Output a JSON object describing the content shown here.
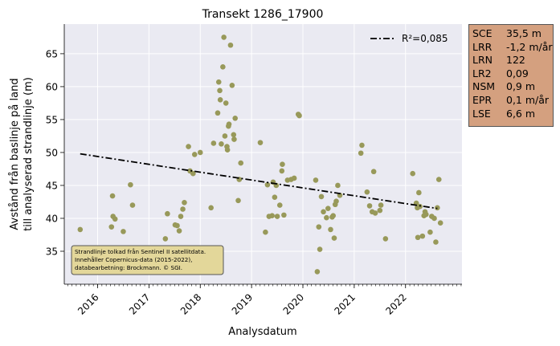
{
  "chart_data": {
    "type": "scatter",
    "title": "Transekt 1286_17900",
    "xlabel": "Analysdatum",
    "ylabel_line1": "Avstånd från baslinje på land",
    "ylabel_line2": "till analyserad strandlinje (m)",
    "xlim": [
      2015.35,
      2023.1
    ],
    "ylim": [
      30.0,
      69.5
    ],
    "x_ticks": [
      2016,
      2017,
      2018,
      2019,
      2020,
      2021,
      2022
    ],
    "x_tick_labels": [
      "2016",
      "2017",
      "2018",
      "2019",
      "2020",
      "2021",
      "2022"
    ],
    "y_ticks": [
      35,
      40,
      45,
      50,
      55,
      60,
      65
    ],
    "y_tick_labels": [
      "35",
      "40",
      "45",
      "50",
      "55",
      "60",
      "65"
    ],
    "grid": true,
    "legend_position": "top-right",
    "series": [
      {
        "name": "observations",
        "kind": "scatter",
        "color": "#98995a",
        "points": [
          [
            2015.66,
            38.3
          ],
          [
            2016.27,
            38.7
          ],
          [
            2016.29,
            43.4
          ],
          [
            2016.3,
            40.3
          ],
          [
            2016.34,
            39.9
          ],
          [
            2016.5,
            38.0
          ],
          [
            2016.64,
            45.1
          ],
          [
            2016.68,
            42.0
          ],
          [
            2017.32,
            36.9
          ],
          [
            2017.36,
            40.7
          ],
          [
            2017.51,
            39.0
          ],
          [
            2017.55,
            38.9
          ],
          [
            2017.59,
            38.1
          ],
          [
            2017.62,
            40.3
          ],
          [
            2017.66,
            41.4
          ],
          [
            2017.69,
            42.4
          ],
          [
            2017.77,
            50.9
          ],
          [
            2017.8,
            47.2
          ],
          [
            2017.86,
            46.8
          ],
          [
            2017.89,
            49.7
          ],
          [
            2018.0,
            50.0
          ],
          [
            2018.21,
            41.6
          ],
          [
            2018.26,
            51.4
          ],
          [
            2018.34,
            56.0
          ],
          [
            2018.36,
            60.7
          ],
          [
            2018.38,
            59.4
          ],
          [
            2018.39,
            58.0
          ],
          [
            2018.41,
            51.3
          ],
          [
            2018.44,
            63.0
          ],
          [
            2018.46,
            67.5
          ],
          [
            2018.48,
            52.5
          ],
          [
            2018.5,
            57.5
          ],
          [
            2018.52,
            50.9
          ],
          [
            2018.53,
            50.4
          ],
          [
            2018.55,
            54.0
          ],
          [
            2018.56,
            54.3
          ],
          [
            2018.59,
            66.3
          ],
          [
            2018.62,
            60.2
          ],
          [
            2018.65,
            52.7
          ],
          [
            2018.68,
            55.2
          ],
          [
            2018.74,
            42.7
          ],
          [
            2018.76,
            45.9
          ],
          [
            2018.79,
            48.4
          ],
          [
            2018.66,
            52.0
          ],
          [
            2019.17,
            51.5
          ],
          [
            2019.27,
            37.9
          ],
          [
            2019.31,
            45.1
          ],
          [
            2019.34,
            40.3
          ],
          [
            2019.4,
            40.4
          ],
          [
            2019.42,
            45.5
          ],
          [
            2019.45,
            43.2
          ],
          [
            2019.48,
            45.0
          ],
          [
            2019.5,
            40.3
          ],
          [
            2019.55,
            42.0
          ],
          [
            2019.59,
            47.2
          ],
          [
            2019.6,
            48.2
          ],
          [
            2019.63,
            40.5
          ],
          [
            2019.7,
            45.8
          ],
          [
            2019.77,
            45.9
          ],
          [
            2019.83,
            46.1
          ],
          [
            2019.91,
            55.8
          ],
          [
            2019.93,
            55.6
          ],
          [
            2020.25,
            45.8
          ],
          [
            2020.28,
            31.9
          ],
          [
            2020.31,
            38.7
          ],
          [
            2020.33,
            35.3
          ],
          [
            2020.36,
            43.3
          ],
          [
            2020.4,
            41.0
          ],
          [
            2020.46,
            40.1
          ],
          [
            2020.49,
            41.5
          ],
          [
            2020.54,
            38.3
          ],
          [
            2020.57,
            40.2
          ],
          [
            2020.59,
            40.4
          ],
          [
            2020.61,
            37.0
          ],
          [
            2020.63,
            42.1
          ],
          [
            2020.65,
            42.6
          ],
          [
            2020.68,
            45.0
          ],
          [
            2020.72,
            43.5
          ],
          [
            2021.13,
            49.9
          ],
          [
            2021.15,
            51.1
          ],
          [
            2021.25,
            44.0
          ],
          [
            2021.3,
            41.9
          ],
          [
            2021.35,
            41.0
          ],
          [
            2021.38,
            47.1
          ],
          [
            2021.41,
            40.8
          ],
          [
            2021.5,
            41.2
          ],
          [
            2021.52,
            42.0
          ],
          [
            2021.61,
            36.9
          ],
          [
            2022.14,
            46.8
          ],
          [
            2022.21,
            42.3
          ],
          [
            2022.23,
            41.6
          ],
          [
            2022.24,
            37.1
          ],
          [
            2022.26,
            43.9
          ],
          [
            2022.28,
            41.8
          ],
          [
            2022.33,
            37.3
          ],
          [
            2022.36,
            40.4
          ],
          [
            2022.38,
            41.0
          ],
          [
            2022.4,
            40.6
          ],
          [
            2022.48,
            37.9
          ],
          [
            2022.51,
            40.3
          ],
          [
            2022.56,
            40.0
          ],
          [
            2022.59,
            36.4
          ],
          [
            2022.62,
            41.6
          ],
          [
            2022.65,
            45.9
          ],
          [
            2022.68,
            39.3
          ]
        ]
      },
      {
        "name": "R²=0,085",
        "kind": "line",
        "style": "dash-dot",
        "color": "#000000",
        "points": [
          [
            2015.66,
            49.8
          ],
          [
            2022.62,
            41.5
          ]
        ]
      }
    ],
    "annotation": [
      "Strandlinje tolkad från Sentinel II satellitdata.",
      "Innehåller Copernicus-data (2015-2022),",
      "databearbetning: Brockmann. © SGI."
    ]
  },
  "stats": [
    {
      "key": "SCE",
      "value": "35,5 m"
    },
    {
      "key": "LRR",
      "value": "-1,2 m/år"
    },
    {
      "key": "LRN",
      "value": "122"
    },
    {
      "key": "LR2",
      "value": "0,09"
    },
    {
      "key": "NSM",
      "value": "0,9 m"
    },
    {
      "key": "EPR",
      "value": "0,1 m/år"
    },
    {
      "key": "LSE",
      "value": "6,6 m"
    }
  ],
  "colors": {
    "plot_background": "#eaeaf2",
    "marker": "#98995a",
    "stats_box": "#d4a07f",
    "annotation_box": "#e3d79a"
  }
}
